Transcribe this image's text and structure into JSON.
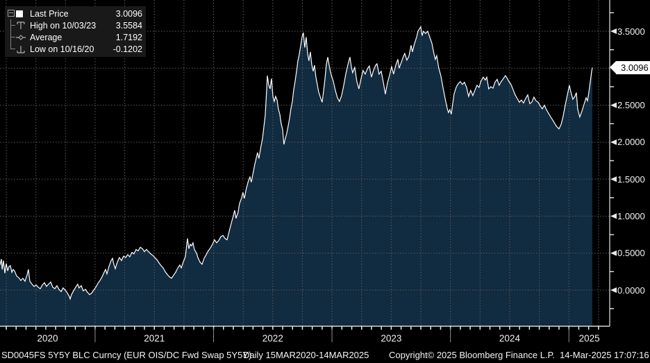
{
  "window": {
    "footer_ticker": "SD0045FS 5Y5Y BLC Curncy (EUR OIS/DC Fwd Swap 5Y5Y)",
    "footer_period": "Daily 15MAR2020-14MAR2025",
    "footer_copyright": "Copyright© 2025 Bloomberg Finance L.P.",
    "footer_timestamp": "14-Mar-2025 17:07:16"
  },
  "legend": {
    "items": [
      {
        "marker": "last-price-square",
        "label": "Last Price",
        "value": "3.0096"
      },
      {
        "marker": "high-marker",
        "label": "High on 10/03/23",
        "value": "3.5584"
      },
      {
        "marker": "average-marker",
        "label": "Average",
        "value": "1.7192"
      },
      {
        "marker": "low-marker",
        "label": "Low on 10/16/20",
        "value": "-0.1202"
      }
    ]
  },
  "colors": {
    "background": "#000000",
    "line": "#ffffff",
    "area_fill": "#112b40",
    "grid": "#5e5e5e",
    "axis": "#d6d6d6",
    "tick": "#e8e8e8",
    "year_separator": "#8f8f8f",
    "flag_bg": "#ffffff",
    "flag_text": "#000000",
    "legend_bg": "#191919",
    "marker_gray": "#b0b0b0"
  },
  "chart_data": {
    "type": "area",
    "title": "SD0045FS 5Y5Y BLC Curncy (EUR OIS/DC Fwd Swap 5Y5Y)",
    "period": "Daily 15MAR2020-14MAR2025",
    "series_name": "Last Price",
    "stats": {
      "last": 3.0096,
      "high": 3.5584,
      "high_date": "10/03/23",
      "average": 1.7192,
      "low": -0.1202,
      "low_date": "10/16/20"
    },
    "last_price_label": "3.0096",
    "x_years": [
      2020,
      2021,
      2022,
      2023,
      2024,
      2025
    ],
    "x_range": [
      2020.197,
      2025.198
    ],
    "y_gridlines": [
      0,
      0.5,
      1,
      1.5,
      2,
      2.5,
      3,
      3.5
    ],
    "y_labels": [
      {
        "v": 3.5,
        "text": "3.5000"
      },
      {
        "v": 2.5,
        "text": "2.5000"
      },
      {
        "v": 2.0,
        "text": "2.0000"
      },
      {
        "v": 1.5,
        "text": "1.5000"
      },
      {
        "v": 1.0,
        "text": "1.0000"
      },
      {
        "v": 0.5,
        "text": "0.5000"
      },
      {
        "v": 0.0,
        "text": "0.0000"
      }
    ],
    "t": [
      2020.197,
      2020.209,
      2020.215,
      2020.226,
      2020.238,
      2020.25,
      2020.262,
      2020.273,
      2020.285,
      2020.297,
      2020.308,
      2020.32,
      2020.338,
      2020.355,
      2020.373,
      2020.39,
      2020.408,
      2020.426,
      2020.437,
      2020.449,
      2020.467,
      2020.484,
      2020.502,
      2020.519,
      2020.537,
      2020.555,
      2020.572,
      2020.59,
      2020.607,
      2020.625,
      2020.642,
      2020.66,
      2020.678,
      2020.695,
      2020.713,
      2020.73,
      2020.748,
      2020.766,
      2020.783,
      2020.789,
      2020.801,
      2020.818,
      2020.836,
      2020.853,
      2020.865,
      2020.883,
      2020.9,
      2020.918,
      2020.936,
      2020.953,
      2020.971,
      2020.988,
      2021.006,
      2021.023,
      2021.041,
      2021.059,
      2021.076,
      2021.088,
      2021.1,
      2021.117,
      2021.135,
      2021.147,
      2021.158,
      2021.17,
      2021.188,
      2021.205,
      2021.223,
      2021.24,
      2021.258,
      2021.275,
      2021.293,
      2021.311,
      2021.328,
      2021.346,
      2021.363,
      2021.381,
      2021.399,
      2021.416,
      2021.434,
      2021.451,
      2021.469,
      2021.487,
      2021.504,
      2021.522,
      2021.539,
      2021.557,
      2021.574,
      2021.592,
      2021.61,
      2021.627,
      2021.645,
      2021.662,
      2021.68,
      2021.698,
      2021.715,
      2021.727,
      2021.744,
      2021.762,
      2021.774,
      2021.78,
      2021.791,
      2021.803,
      2021.815,
      2021.826,
      2021.838,
      2021.856,
      2021.868,
      2021.885,
      2021.903,
      2021.92,
      2021.938,
      2021.955,
      2021.973,
      2021.991,
      2022.008,
      2022.026,
      2022.043,
      2022.061,
      2022.079,
      2022.096,
      2022.114,
      2022.131,
      2022.149,
      2022.166,
      2022.178,
      2022.19,
      2022.207,
      2022.219,
      2022.237,
      2022.248,
      2022.26,
      2022.278,
      2022.295,
      2022.307,
      2022.319,
      2022.336,
      2022.348,
      2022.36,
      2022.371,
      2022.383,
      2022.401,
      2022.413,
      2022.424,
      2022.436,
      2022.448,
      2022.454,
      2022.465,
      2022.477,
      2022.489,
      2022.501,
      2022.512,
      2022.524,
      2022.536,
      2022.547,
      2022.559,
      2022.571,
      2022.583,
      2022.594,
      2022.606,
      2022.618,
      2022.63,
      2022.641,
      2022.653,
      2022.665,
      2022.676,
      2022.688,
      2022.7,
      2022.712,
      2022.723,
      2022.735,
      2022.747,
      2022.758,
      2022.77,
      2022.782,
      2022.794,
      2022.805,
      2022.817,
      2022.829,
      2022.841,
      2022.852,
      2022.864,
      2022.876,
      2022.887,
      2022.899,
      2022.917,
      2022.928,
      2022.94,
      2022.952,
      2022.964,
      2022.975,
      2022.987,
      2022.999,
      2023.01,
      2023.028,
      2023.046,
      2023.063,
      2023.081,
      2023.098,
      2023.116,
      2023.134,
      2023.151,
      2023.163,
      2023.174,
      2023.192,
      2023.21,
      2023.227,
      2023.245,
      2023.262,
      2023.28,
      2023.298,
      2023.315,
      2023.333,
      2023.35,
      2023.368,
      2023.38,
      2023.397,
      2023.415,
      2023.433,
      2023.45,
      2023.468,
      2023.485,
      2023.503,
      2023.52,
      2023.538,
      2023.556,
      2023.567,
      2023.585,
      2023.603,
      2023.614,
      2023.632,
      2023.649,
      2023.667,
      2023.679,
      2023.696,
      2023.714,
      2023.726,
      2023.737,
      2023.749,
      2023.761,
      2023.772,
      2023.79,
      2023.808,
      2023.825,
      2023.843,
      2023.86,
      2023.872,
      2023.884,
      2023.901,
      2023.919,
      2023.937,
      2023.954,
      2023.972,
      2023.983,
      2023.995,
      2024.007,
      2024.019,
      2024.03,
      2024.048,
      2024.065,
      2024.083,
      2024.101,
      2024.118,
      2024.136,
      2024.153,
      2024.171,
      2024.189,
      2024.206,
      2024.224,
      2024.241,
      2024.259,
      2024.277,
      2024.294,
      2024.306,
      2024.323,
      2024.341,
      2024.359,
      2024.376,
      2024.394,
      2024.411,
      2024.429,
      2024.447,
      2024.464,
      2024.476,
      2024.494,
      2024.511,
      2024.529,
      2024.546,
      2024.564,
      2024.582,
      2024.599,
      2024.617,
      2024.634,
      2024.652,
      2024.67,
      2024.687,
      2024.705,
      2024.722,
      2024.74,
      2024.758,
      2024.775,
      2024.793,
      2024.81,
      2024.828,
      2024.846,
      2024.863,
      2024.881,
      2024.898,
      2024.916,
      2024.934,
      2024.951,
      2024.969,
      2024.986,
      2025.004,
      2025.016,
      2025.033,
      2025.051,
      2025.063,
      2025.074,
      2025.092,
      2025.11,
      2025.127,
      2025.145,
      2025.157,
      2025.168,
      2025.18,
      2025.192,
      2025.198
    ],
    "v": [
      0.34,
      0.42,
      0.28,
      0.4,
      0.23,
      0.36,
      0.26,
      0.32,
      0.33,
      0.24,
      0.28,
      0.26,
      0.19,
      0.17,
      0.13,
      0.16,
      0.12,
      0.21,
      0.28,
      0.12,
      0.08,
      0.05,
      0.07,
      0.04,
      0.02,
      0.07,
      0.1,
      0.05,
      0.08,
      0.11,
      0.04,
      0.02,
      0.06,
      0.01,
      -0.02,
      0.03,
      0.0,
      -0.04,
      -0.09,
      -0.12,
      -0.06,
      -0.01,
      0.04,
      0.08,
      0.03,
      0.06,
      -0.01,
      0.01,
      -0.03,
      -0.06,
      -0.04,
      0.0,
      0.04,
      0.09,
      0.13,
      0.18,
      0.24,
      0.28,
      0.22,
      0.32,
      0.4,
      0.43,
      0.35,
      0.29,
      0.38,
      0.44,
      0.4,
      0.46,
      0.44,
      0.48,
      0.45,
      0.51,
      0.49,
      0.55,
      0.53,
      0.58,
      0.56,
      0.52,
      0.55,
      0.52,
      0.49,
      0.47,
      0.44,
      0.41,
      0.37,
      0.33,
      0.3,
      0.25,
      0.21,
      0.18,
      0.16,
      0.2,
      0.24,
      0.3,
      0.34,
      0.3,
      0.38,
      0.45,
      0.62,
      0.7,
      0.56,
      0.62,
      0.6,
      0.64,
      0.55,
      0.5,
      0.44,
      0.38,
      0.35,
      0.43,
      0.48,
      0.53,
      0.57,
      0.62,
      0.68,
      0.64,
      0.67,
      0.72,
      0.74,
      0.7,
      0.68,
      0.79,
      0.9,
      1.0,
      1.08,
      0.97,
      1.05,
      1.17,
      1.25,
      1.32,
      1.24,
      1.38,
      1.48,
      1.53,
      1.46,
      1.6,
      1.7,
      1.78,
      1.86,
      1.78,
      1.95,
      2.05,
      2.2,
      2.36,
      2.7,
      2.9,
      2.78,
      2.72,
      2.86,
      2.62,
      2.55,
      2.62,
      2.57,
      2.45,
      2.38,
      2.25,
      2.17,
      1.97,
      2.05,
      2.12,
      2.22,
      2.32,
      2.45,
      2.55,
      2.7,
      2.82,
      2.95,
      3.1,
      3.18,
      3.3,
      3.42,
      3.48,
      3.28,
      3.42,
      3.2,
      3.1,
      3.22,
      3.05,
      2.96,
      3.04,
      2.88,
      2.78,
      2.68,
      2.62,
      2.54,
      2.68,
      2.85,
      3.05,
      3.15,
      3.05,
      2.95,
      2.88,
      2.83,
      2.7,
      2.6,
      2.55,
      2.63,
      2.76,
      2.92,
      3.05,
      3.15,
      3.02,
      2.94,
      3.01,
      2.82,
      2.72,
      2.86,
      2.97,
      2.92,
      2.99,
      3.03,
      2.88,
      2.97,
      3.04,
      3.06,
      2.92,
      2.96,
      2.81,
      2.65,
      2.8,
      2.9,
      3.02,
      2.92,
      3.04,
      3.12,
      3.0,
      3.08,
      3.16,
      3.2,
      3.11,
      3.16,
      3.31,
      3.22,
      3.33,
      3.42,
      3.5,
      3.53,
      3.56,
      3.44,
      3.5,
      3.47,
      3.5,
      3.42,
      3.34,
      3.2,
      3.12,
      3.17,
      3.0,
      2.9,
      2.74,
      2.6,
      2.46,
      2.4,
      2.44,
      2.38,
      2.52,
      2.65,
      2.74,
      2.79,
      2.82,
      2.78,
      2.81,
      2.74,
      2.62,
      2.7,
      2.63,
      2.7,
      2.77,
      2.74,
      2.83,
      2.88,
      2.84,
      2.88,
      2.72,
      2.75,
      2.73,
      2.81,
      2.85,
      2.77,
      2.82,
      2.86,
      2.9,
      2.87,
      2.82,
      2.78,
      2.71,
      2.64,
      2.59,
      2.54,
      2.57,
      2.53,
      2.59,
      2.64,
      2.52,
      2.54,
      2.61,
      2.56,
      2.54,
      2.49,
      2.45,
      2.5,
      2.44,
      2.39,
      2.34,
      2.3,
      2.25,
      2.21,
      2.18,
      2.24,
      2.35,
      2.5,
      2.63,
      2.77,
      2.68,
      2.58,
      2.62,
      2.67,
      2.45,
      2.34,
      2.42,
      2.51,
      2.6,
      2.56,
      2.67,
      2.81,
      2.96,
      3.01
    ]
  }
}
